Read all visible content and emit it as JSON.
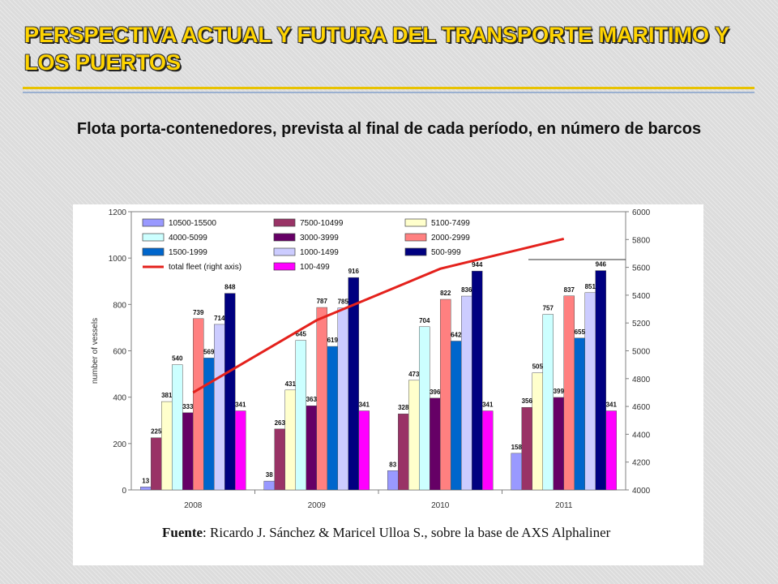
{
  "title": "PERSPECTIVA ACTUAL Y FUTURA DEL TRANSPORTE MARITIMO Y LOS PUERTOS",
  "subtitle": "Flota porta-contenedores, prevista al final de cada período, en número de barcos",
  "source": {
    "label": "Fuente",
    "text": ": Ricardo J. Sánchez & Maricel Ulloa S., sobre la base de AXS Alphaliner"
  },
  "colors": {
    "title": "#ffd400",
    "line": "#e4211c"
  },
  "chart_data": {
    "type": "bar",
    "categories": [
      "2008",
      "2009",
      "2010",
      "2011"
    ],
    "ylabel": "number of vessels",
    "ylim": [
      0,
      1200
    ],
    "y_ticks": [
      "0",
      "200",
      "400",
      "600",
      "800",
      "1000",
      "1200"
    ],
    "y2lim": [
      4000,
      6000
    ],
    "y2_ticks": [
      "4000",
      "4200",
      "4400",
      "4600",
      "4800",
      "5000",
      "5200",
      "5400",
      "5600",
      "5800",
      "6000"
    ],
    "legend_position": "top",
    "series": [
      {
        "name": "10500-15500",
        "color": "#9999ff",
        "values": [
          13,
          38,
          83,
          158
        ],
        "labels": [
          "13",
          "38",
          "83",
          "158"
        ]
      },
      {
        "name": "7500-10499",
        "color": "#993366",
        "values": [
          225,
          263,
          328,
          356
        ],
        "labels": [
          "225",
          "263",
          "328",
          "356"
        ]
      },
      {
        "name": "5100-7499",
        "color": "#ffffcc",
        "values": [
          381,
          431,
          473,
          505
        ],
        "labels": [
          "381",
          "431",
          "473",
          "505"
        ]
      },
      {
        "name": "4000-5099",
        "color": "#ccffff",
        "values": [
          540,
          645,
          704,
          757
        ],
        "labels": [
          "540",
          "645",
          "704",
          "757"
        ]
      },
      {
        "name": "3000-3999",
        "color": "#660066",
        "values": [
          333,
          363,
          396,
          399
        ],
        "labels": [
          "333",
          "363",
          "396",
          "399"
        ]
      },
      {
        "name": "2000-2999",
        "color": "#ff8080",
        "values": [
          739,
          787,
          822,
          837
        ],
        "labels": [
          "739",
          "787",
          "822",
          "837"
        ]
      },
      {
        "name": "1500-1999",
        "color": "#0066cc",
        "values": [
          569,
          619,
          642,
          655
        ],
        "labels": [
          "569",
          "619",
          "642",
          "655"
        ]
      },
      {
        "name": "1000-1499",
        "color": "#ccccff",
        "values": [
          714,
          785,
          836,
          851
        ],
        "labels": [
          "714",
          "785",
          "836",
          "851"
        ]
      },
      {
        "name": "500-999",
        "color": "#000080",
        "values": [
          848,
          916,
          944,
          946
        ],
        "labels": [
          "848",
          "916",
          "944",
          "946"
        ]
      },
      {
        "name": "100-499",
        "color": "#ff00ff",
        "values": [
          341,
          341,
          341,
          341
        ],
        "labels": [
          "341",
          "341",
          "341",
          "341"
        ]
      }
    ],
    "line_series": {
      "name": "total fleet (right axis)",
      "axis": "right",
      "color": "#e4211c",
      "x": [
        "2008",
        "2009",
        "2010",
        "2011"
      ],
      "values": [
        4700,
        5220,
        5590,
        5805
      ]
    }
  }
}
